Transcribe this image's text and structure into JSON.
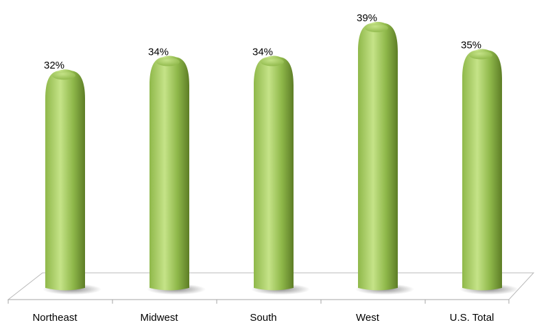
{
  "chart_data": {
    "type": "bar",
    "categories": [
      "Northeast",
      "Midwest",
      "South",
      "West",
      "U.S. Total"
    ],
    "values": [
      32,
      34,
      34,
      39,
      35
    ],
    "data_labels": [
      "32%",
      "34%",
      "34%",
      "39%",
      "35%"
    ],
    "value_unit": "%",
    "title": "",
    "xlabel": "",
    "ylabel": "",
    "ylim": [
      0,
      40
    ],
    "grid": false,
    "legend": "none",
    "bar_shape": "3d-rounded-cylinder",
    "colors": {
      "bar_light": "#c5e388",
      "bar_mid": "#8fb84a",
      "bar_dark": "#5d7d26",
      "floor": "#ffffff",
      "floor_edge": "#b8b8b8",
      "axis": "#a6a6a6"
    }
  }
}
